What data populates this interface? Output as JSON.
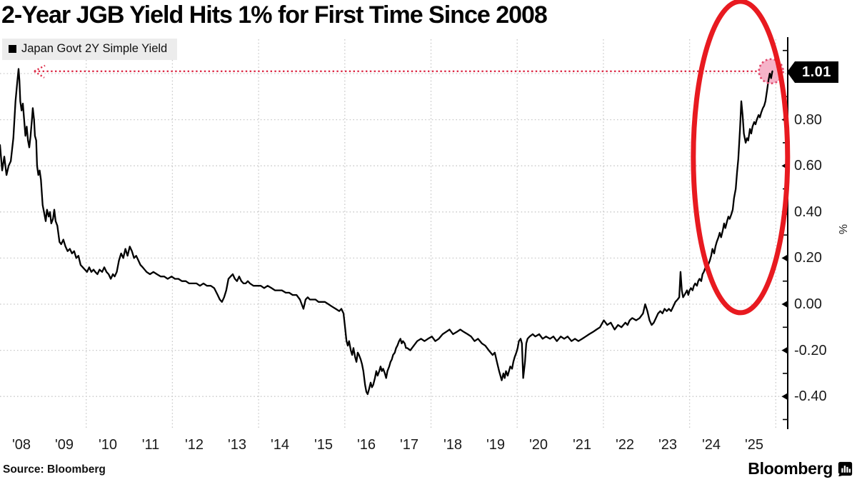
{
  "header": {
    "title": "2-Year JGB Yield Hits 1% for First Time Since 2008"
  },
  "legend": {
    "swatch_icon": "black-square",
    "label": "Japan Govt 2Y Simple Yield"
  },
  "axes": {
    "y_unit": "%",
    "y_labels": [
      "0.80",
      "0.60",
      "0.40",
      "0.20",
      "0.00",
      "-0.20",
      "-0.40"
    ],
    "x_labels": [
      "'08",
      "'09",
      "'10",
      "'11",
      "'12",
      "'13",
      "'14",
      "'15",
      "'16",
      "'17",
      "'18",
      "'19",
      "'20",
      "'21",
      "'22",
      "'23",
      "'24",
      "'25"
    ]
  },
  "annotations": {
    "last_value_label": "1.01",
    "marker": {
      "year": 2025.89,
      "value": 1.01
    },
    "highlight_ellipse": {
      "year_center": 2025.18,
      "value_center": 0.638
    }
  },
  "footer": {
    "source": "Source: Bloomberg",
    "brand": "Bloomberg"
  },
  "colors": {
    "line": "#000000",
    "grid": "#c9c9c9",
    "accent_red": "#e81a20",
    "leader_red": "#dd2e49",
    "marker_fill": "#f4a6c0",
    "marker_ring": "#e0486b",
    "legend_bg": "#ececec",
    "tag_bg": "#000000",
    "tag_text": "#ffffff"
  },
  "chart_data": {
    "type": "line",
    "title": "2-Year JGB Yield Hits 1% for First Time Since 2008",
    "series_name": "Japan Govt 2Y Simple Yield",
    "unit": "%",
    "x_range": [
      2008.0,
      2026.1
    ],
    "y_range": [
      -0.55,
      1.15
    ],
    "last_value": 1.01,
    "y_tick_values": [
      0.8,
      0.6,
      0.4,
      0.2,
      0.0,
      -0.2,
      -0.4
    ],
    "y_minor_ticks": [
      1.1,
      0.9,
      0.7,
      0.5,
      0.3,
      0.1,
      -0.1,
      -0.3,
      -0.5
    ],
    "grid_h_values": [
      1.0,
      0.8,
      0.6,
      0.4,
      0.2,
      0.0,
      -0.2,
      -0.4
    ],
    "grid_v_years": [
      2010,
      2012,
      2014,
      2016,
      2018,
      2020,
      2022,
      2024,
      2026
    ],
    "points": [
      [
        2008.0,
        0.69
      ],
      [
        2008.05,
        0.58
      ],
      [
        2008.1,
        0.64
      ],
      [
        2008.15,
        0.56
      ],
      [
        2008.2,
        0.6
      ],
      [
        2008.25,
        0.62
      ],
      [
        2008.31,
        0.72
      ],
      [
        2008.36,
        0.88
      ],
      [
        2008.4,
        0.96
      ],
      [
        2008.43,
        1.02
      ],
      [
        2008.45,
        0.97
      ],
      [
        2008.47,
        0.88
      ],
      [
        2008.5,
        0.84
      ],
      [
        2008.53,
        0.87
      ],
      [
        2008.56,
        0.8
      ],
      [
        2008.59,
        0.73
      ],
      [
        2008.62,
        0.77
      ],
      [
        2008.65,
        0.71
      ],
      [
        2008.68,
        0.68
      ],
      [
        2008.71,
        0.73
      ],
      [
        2008.74,
        0.8
      ],
      [
        2008.76,
        0.85
      ],
      [
        2008.79,
        0.8
      ],
      [
        2008.81,
        0.73
      ],
      [
        2008.84,
        0.71
      ],
      [
        2008.86,
        0.6
      ],
      [
        2008.89,
        0.56
      ],
      [
        2008.92,
        0.58
      ],
      [
        2008.95,
        0.54
      ],
      [
        2008.99,
        0.43
      ],
      [
        2009.03,
        0.39
      ],
      [
        2009.06,
        0.36
      ],
      [
        2009.09,
        0.41
      ],
      [
        2009.13,
        0.38
      ],
      [
        2009.16,
        0.4
      ],
      [
        2009.19,
        0.35
      ],
      [
        2009.23,
        0.37
      ],
      [
        2009.26,
        0.41
      ],
      [
        2009.29,
        0.36
      ],
      [
        2009.33,
        0.34
      ],
      [
        2009.38,
        0.27
      ],
      [
        2009.42,
        0.26
      ],
      [
        2009.47,
        0.28
      ],
      [
        2009.52,
        0.25
      ],
      [
        2009.57,
        0.23
      ],
      [
        2009.62,
        0.24
      ],
      [
        2009.67,
        0.22
      ],
      [
        2009.72,
        0.23
      ],
      [
        2009.77,
        0.2
      ],
      [
        2009.82,
        0.21
      ],
      [
        2009.87,
        0.17
      ],
      [
        2009.92,
        0.16
      ],
      [
        2009.97,
        0.15
      ],
      [
        2010.02,
        0.14
      ],
      [
        2010.07,
        0.16
      ],
      [
        2010.12,
        0.14
      ],
      [
        2010.17,
        0.15
      ],
      [
        2010.21,
        0.14
      ],
      [
        2010.26,
        0.13
      ],
      [
        2010.31,
        0.15
      ],
      [
        2010.37,
        0.14
      ],
      [
        2010.42,
        0.16
      ],
      [
        2010.47,
        0.14
      ],
      [
        2010.52,
        0.13
      ],
      [
        2010.57,
        0.11
      ],
      [
        2010.62,
        0.13
      ],
      [
        2010.66,
        0.12
      ],
      [
        2010.71,
        0.14
      ],
      [
        2010.76,
        0.19
      ],
      [
        2010.81,
        0.22
      ],
      [
        2010.86,
        0.2
      ],
      [
        2010.91,
        0.24
      ],
      [
        2010.96,
        0.21
      ],
      [
        2011.01,
        0.25
      ],
      [
        2011.06,
        0.23
      ],
      [
        2011.11,
        0.2
      ],
      [
        2011.16,
        0.21
      ],
      [
        2011.21,
        0.19
      ],
      [
        2011.26,
        0.17
      ],
      [
        2011.31,
        0.16
      ],
      [
        2011.4,
        0.14
      ],
      [
        2011.48,
        0.13
      ],
      [
        2011.56,
        0.14
      ],
      [
        2011.64,
        0.13
      ],
      [
        2011.73,
        0.12
      ],
      [
        2011.81,
        0.12
      ],
      [
        2011.89,
        0.11
      ],
      [
        2011.98,
        0.12
      ],
      [
        2012.06,
        0.11
      ],
      [
        2012.14,
        0.11
      ],
      [
        2012.22,
        0.1
      ],
      [
        2012.31,
        0.1
      ],
      [
        2012.39,
        0.09
      ],
      [
        2012.47,
        0.09
      ],
      [
        2012.56,
        0.09
      ],
      [
        2012.64,
        0.08
      ],
      [
        2012.72,
        0.09
      ],
      [
        2012.8,
        0.08
      ],
      [
        2012.89,
        0.08
      ],
      [
        2012.97,
        0.07
      ],
      [
        2013.05,
        0.04
      ],
      [
        2013.1,
        0.02
      ],
      [
        2013.15,
        0.01
      ],
      [
        2013.2,
        0.03
      ],
      [
        2013.25,
        0.06
      ],
      [
        2013.3,
        0.11
      ],
      [
        2013.35,
        0.12
      ],
      [
        2013.4,
        0.13
      ],
      [
        2013.45,
        0.11
      ],
      [
        2013.5,
        0.1
      ],
      [
        2013.55,
        0.12
      ],
      [
        2013.6,
        0.1
      ],
      [
        2013.65,
        0.09
      ],
      [
        2013.7,
        0.09
      ],
      [
        2013.75,
        0.1
      ],
      [
        2013.8,
        0.09
      ],
      [
        2013.88,
        0.08
      ],
      [
        2013.96,
        0.08
      ],
      [
        2014.05,
        0.08
      ],
      [
        2014.13,
        0.07
      ],
      [
        2014.21,
        0.08
      ],
      [
        2014.3,
        0.07
      ],
      [
        2014.38,
        0.06
      ],
      [
        2014.46,
        0.06
      ],
      [
        2014.54,
        0.06
      ],
      [
        2014.63,
        0.05
      ],
      [
        2014.71,
        0.05
      ],
      [
        2014.79,
        0.04
      ],
      [
        2014.88,
        0.04
      ],
      [
        2014.96,
        0.02
      ],
      [
        2015.04,
        -0.02
      ],
      [
        2015.09,
        0.02
      ],
      [
        2015.14,
        0.03
      ],
      [
        2015.19,
        0.02
      ],
      [
        2015.26,
        0.02
      ],
      [
        2015.32,
        0.02
      ],
      [
        2015.39,
        0.01
      ],
      [
        2015.46,
        0.01
      ],
      [
        2015.54,
        0.01
      ],
      [
        2015.62,
        0.0
      ],
      [
        2015.7,
        -0.01
      ],
      [
        2015.79,
        -0.02
      ],
      [
        2015.87,
        -0.03
      ],
      [
        2015.92,
        -0.02
      ],
      [
        2015.97,
        -0.04
      ],
      [
        2016.0,
        -0.09
      ],
      [
        2016.04,
        -0.16
      ],
      [
        2016.07,
        -0.18
      ],
      [
        2016.1,
        -0.16
      ],
      [
        2016.14,
        -0.2
      ],
      [
        2016.17,
        -0.22
      ],
      [
        2016.2,
        -0.19
      ],
      [
        2016.24,
        -0.23
      ],
      [
        2016.27,
        -0.25
      ],
      [
        2016.3,
        -0.21
      ],
      [
        2016.33,
        -0.22
      ],
      [
        2016.37,
        -0.24
      ],
      [
        2016.4,
        -0.26
      ],
      [
        2016.43,
        -0.29
      ],
      [
        2016.47,
        -0.35
      ],
      [
        2016.5,
        -0.38
      ],
      [
        2016.53,
        -0.39
      ],
      [
        2016.56,
        -0.37
      ],
      [
        2016.6,
        -0.34
      ],
      [
        2016.63,
        -0.36
      ],
      [
        2016.66,
        -0.35
      ],
      [
        2016.7,
        -0.32
      ],
      [
        2016.73,
        -0.29
      ],
      [
        2016.76,
        -0.31
      ],
      [
        2016.8,
        -0.29
      ],
      [
        2016.83,
        -0.27
      ],
      [
        2016.86,
        -0.29
      ],
      [
        2016.89,
        -0.28
      ],
      [
        2016.93,
        -0.3
      ],
      [
        2016.96,
        -0.32
      ],
      [
        2016.99,
        -0.29
      ],
      [
        2017.03,
        -0.27
      ],
      [
        2017.06,
        -0.25
      ],
      [
        2017.09,
        -0.24
      ],
      [
        2017.12,
        -0.22
      ],
      [
        2017.16,
        -0.21
      ],
      [
        2017.19,
        -0.19
      ],
      [
        2017.22,
        -0.18
      ],
      [
        2017.26,
        -0.16
      ],
      [
        2017.29,
        -0.15
      ],
      [
        2017.32,
        -0.17
      ],
      [
        2017.35,
        -0.16
      ],
      [
        2017.39,
        -0.17
      ],
      [
        2017.42,
        -0.19
      ],
      [
        2017.45,
        -0.19
      ],
      [
        2017.52,
        -0.2
      ],
      [
        2017.6,
        -0.18
      ],
      [
        2017.68,
        -0.16
      ],
      [
        2017.77,
        -0.15
      ],
      [
        2017.85,
        -0.16
      ],
      [
        2017.93,
        -0.15
      ],
      [
        2018.02,
        -0.14
      ],
      [
        2018.1,
        -0.16
      ],
      [
        2018.18,
        -0.15
      ],
      [
        2018.27,
        -0.13
      ],
      [
        2018.35,
        -0.12
      ],
      [
        2018.43,
        -0.11
      ],
      [
        2018.51,
        -0.13
      ],
      [
        2018.6,
        -0.12
      ],
      [
        2018.68,
        -0.11
      ],
      [
        2018.76,
        -0.12
      ],
      [
        2018.85,
        -0.13
      ],
      [
        2018.93,
        -0.14
      ],
      [
        2019.01,
        -0.16
      ],
      [
        2019.09,
        -0.15
      ],
      [
        2019.18,
        -0.17
      ],
      [
        2019.26,
        -0.18
      ],
      [
        2019.34,
        -0.2
      ],
      [
        2019.43,
        -0.22
      ],
      [
        2019.48,
        -0.21
      ],
      [
        2019.53,
        -0.25
      ],
      [
        2019.58,
        -0.29
      ],
      [
        2019.61,
        -0.31
      ],
      [
        2019.64,
        -0.33
      ],
      [
        2019.68,
        -0.3
      ],
      [
        2019.71,
        -0.32
      ],
      [
        2019.74,
        -0.29
      ],
      [
        2019.78,
        -0.31
      ],
      [
        2019.81,
        -0.29
      ],
      [
        2019.84,
        -0.27
      ],
      [
        2019.88,
        -0.28
      ],
      [
        2019.91,
        -0.25
      ],
      [
        2019.94,
        -0.23
      ],
      [
        2019.98,
        -0.21
      ],
      [
        2020.01,
        -0.19
      ],
      [
        2020.04,
        -0.16
      ],
      [
        2020.08,
        -0.15
      ],
      [
        2020.11,
        -0.17
      ],
      [
        2020.14,
        -0.32
      ],
      [
        2020.18,
        -0.25
      ],
      [
        2020.21,
        -0.17
      ],
      [
        2020.24,
        -0.15
      ],
      [
        2020.29,
        -0.14
      ],
      [
        2020.36,
        -0.13
      ],
      [
        2020.42,
        -0.14
      ],
      [
        2020.51,
        -0.13
      ],
      [
        2020.59,
        -0.15
      ],
      [
        2020.67,
        -0.14
      ],
      [
        2020.76,
        -0.15
      ],
      [
        2020.84,
        -0.14
      ],
      [
        2020.92,
        -0.16
      ],
      [
        2021.01,
        -0.14
      ],
      [
        2021.09,
        -0.15
      ],
      [
        2021.17,
        -0.14
      ],
      [
        2021.26,
        -0.16
      ],
      [
        2021.34,
        -0.15
      ],
      [
        2021.42,
        -0.16
      ],
      [
        2021.51,
        -0.15
      ],
      [
        2021.59,
        -0.14
      ],
      [
        2021.67,
        -0.13
      ],
      [
        2021.76,
        -0.12
      ],
      [
        2021.84,
        -0.11
      ],
      [
        2021.92,
        -0.1
      ],
      [
        2022.01,
        -0.07
      ],
      [
        2022.09,
        -0.09
      ],
      [
        2022.17,
        -0.08
      ],
      [
        2022.26,
        -0.11
      ],
      [
        2022.34,
        -0.09
      ],
      [
        2022.42,
        -0.1
      ],
      [
        2022.51,
        -0.08
      ],
      [
        2022.56,
        -0.09
      ],
      [
        2022.61,
        -0.07
      ],
      [
        2022.67,
        -0.06
      ],
      [
        2022.76,
        -0.07
      ],
      [
        2022.84,
        -0.06
      ],
      [
        2022.92,
        -0.04
      ],
      [
        2022.97,
        0.0
      ],
      [
        2023.02,
        -0.03
      ],
      [
        2023.07,
        -0.07
      ],
      [
        2023.12,
        -0.09
      ],
      [
        2023.17,
        -0.08
      ],
      [
        2023.22,
        -0.06
      ],
      [
        2023.27,
        -0.04
      ],
      [
        2023.32,
        -0.03
      ],
      [
        2023.37,
        -0.04
      ],
      [
        2023.42,
        -0.02
      ],
      [
        2023.47,
        -0.03
      ],
      [
        2023.52,
        -0.02
      ],
      [
        2023.57,
        -0.03
      ],
      [
        2023.62,
        -0.01
      ],
      [
        2023.67,
        0.01
      ],
      [
        2023.72,
        0.02
      ],
      [
        2023.76,
        0.03
      ],
      [
        2023.79,
        0.14
      ],
      [
        2023.82,
        0.06
      ],
      [
        2023.85,
        0.03
      ],
      [
        2023.88,
        0.04
      ],
      [
        2023.91,
        0.05
      ],
      [
        2023.94,
        0.06
      ],
      [
        2023.97,
        0.04
      ],
      [
        2024.0,
        0.06
      ],
      [
        2024.03,
        0.07
      ],
      [
        2024.07,
        0.06
      ],
      [
        2024.1,
        0.08
      ],
      [
        2024.13,
        0.09
      ],
      [
        2024.17,
        0.08
      ],
      [
        2024.2,
        0.1
      ],
      [
        2024.23,
        0.11
      ],
      [
        2024.27,
        0.1
      ],
      [
        2024.3,
        0.13
      ],
      [
        2024.33,
        0.14
      ],
      [
        2024.37,
        0.16
      ],
      [
        2024.4,
        0.15
      ],
      [
        2024.43,
        0.17
      ],
      [
        2024.47,
        0.19
      ],
      [
        2024.5,
        0.21
      ],
      [
        2024.53,
        0.24
      ],
      [
        2024.57,
        0.22
      ],
      [
        2024.6,
        0.25
      ],
      [
        2024.63,
        0.27
      ],
      [
        2024.67,
        0.29
      ],
      [
        2024.7,
        0.31
      ],
      [
        2024.73,
        0.29
      ],
      [
        2024.77,
        0.32
      ],
      [
        2024.8,
        0.35
      ],
      [
        2024.83,
        0.33
      ],
      [
        2024.87,
        0.36
      ],
      [
        2024.9,
        0.38
      ],
      [
        2024.93,
        0.37
      ],
      [
        2024.97,
        0.39
      ],
      [
        2025.0,
        0.41
      ],
      [
        2025.03,
        0.46
      ],
      [
        2025.07,
        0.5
      ],
      [
        2025.1,
        0.57
      ],
      [
        2025.13,
        0.63
      ],
      [
        2025.17,
        0.76
      ],
      [
        2025.2,
        0.88
      ],
      [
        2025.23,
        0.82
      ],
      [
        2025.26,
        0.74
      ],
      [
        2025.3,
        0.7
      ],
      [
        2025.33,
        0.72
      ],
      [
        2025.36,
        0.71
      ],
      [
        2025.4,
        0.76
      ],
      [
        2025.43,
        0.74
      ],
      [
        2025.46,
        0.77
      ],
      [
        2025.5,
        0.79
      ],
      [
        2025.53,
        0.78
      ],
      [
        2025.56,
        0.8
      ],
      [
        2025.6,
        0.82
      ],
      [
        2025.63,
        0.81
      ],
      [
        2025.66,
        0.83
      ],
      [
        2025.7,
        0.85
      ],
      [
        2025.73,
        0.86
      ],
      [
        2025.76,
        0.88
      ],
      [
        2025.8,
        0.93
      ],
      [
        2025.83,
        0.97
      ],
      [
        2025.86,
        1.0
      ],
      [
        2025.89,
        0.98
      ],
      [
        2025.92,
        1.01
      ]
    ]
  }
}
